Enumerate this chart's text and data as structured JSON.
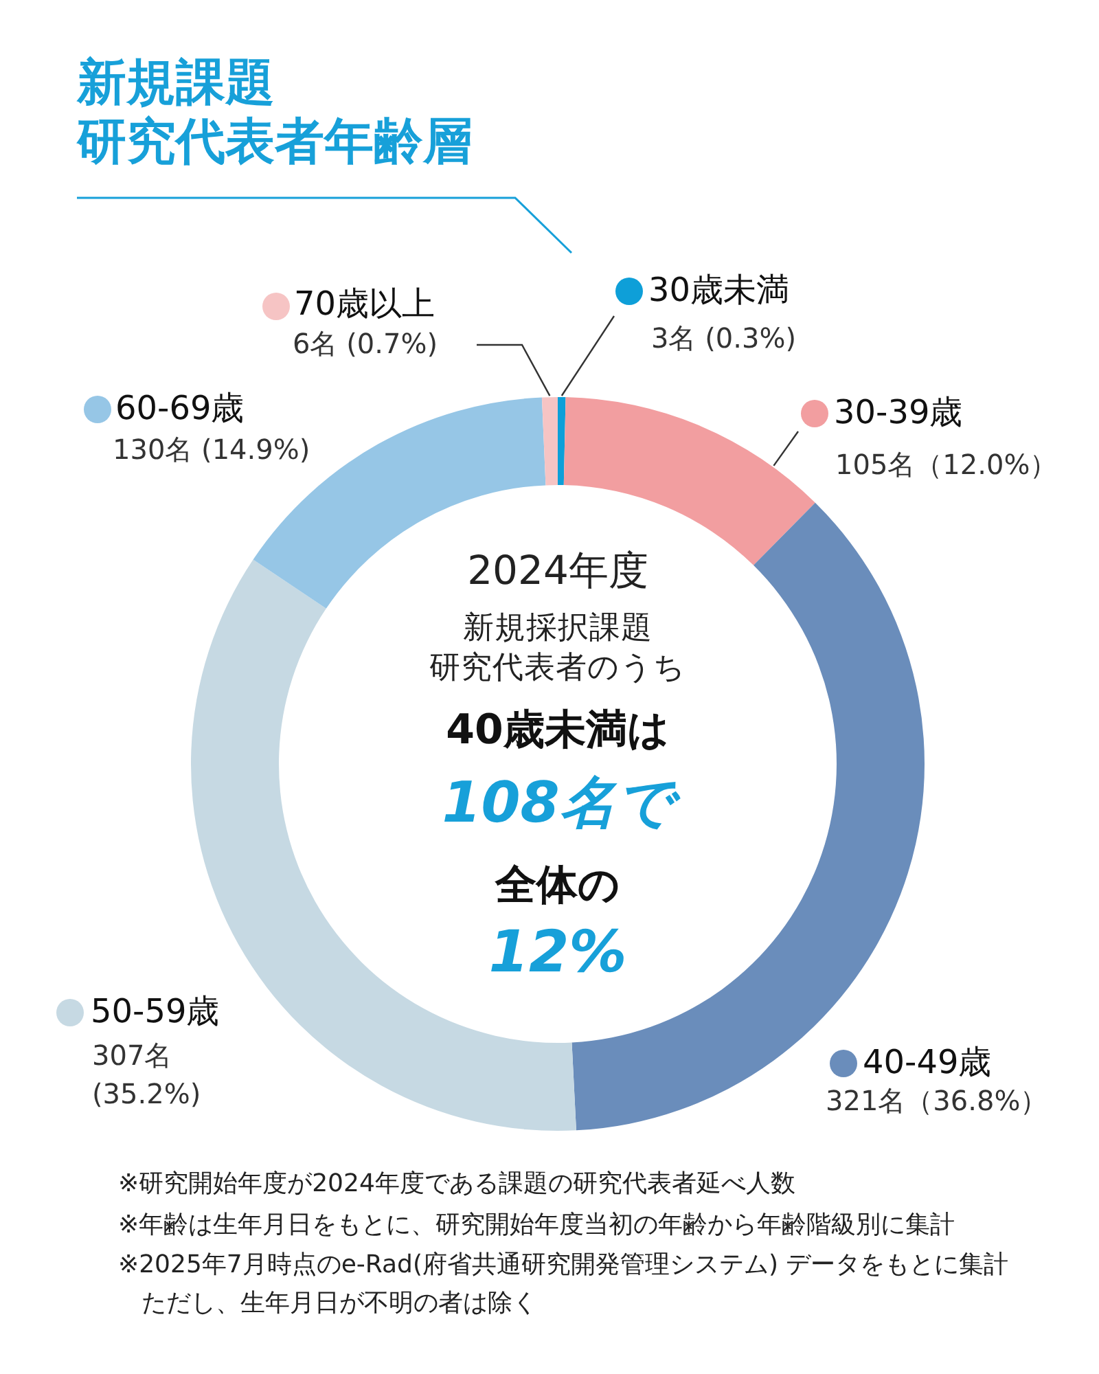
{
  "chart_data": {
    "type": "donut",
    "title": "新規課題研究代表者年齢層",
    "categories": [
      "30歳未満",
      "30-39歳",
      "40-49歳",
      "50-59歳",
      "60-69歳",
      "70歳以上"
    ],
    "values": [
      3,
      105,
      321,
      307,
      130,
      6
    ],
    "colors": [
      "#0e9fd8",
      "#f29ea0",
      "#6a8dbb",
      "#c6d9e3",
      "#96c6e6",
      "#f6c4c4"
    ],
    "value_labels": [
      "3名 (0.3%)",
      "105名（12.0%）",
      "321名（36.8%）",
      "307名 (35.2%)",
      "130名 (14.9%)",
      "6名 (0.7%)"
    ],
    "legend": "top",
    "annotations": [
      "2024年度",
      "新規採択課題",
      "研究代表者のうち",
      "40歳未満は",
      "108名で",
      "全体の",
      "12%",
      "※研究開始年度が2024年度である課題の研究代表者延べ人数",
      "※年齢は生年月日をもとに、研究開始年度当初の年齢から年齢階級別に集計",
      "※2025年7月時点のe-Rad(府省共通研究開発管理システム) データをもとに集計",
      "ただし、生年月日が不明の者は除く"
    ]
  }
}
